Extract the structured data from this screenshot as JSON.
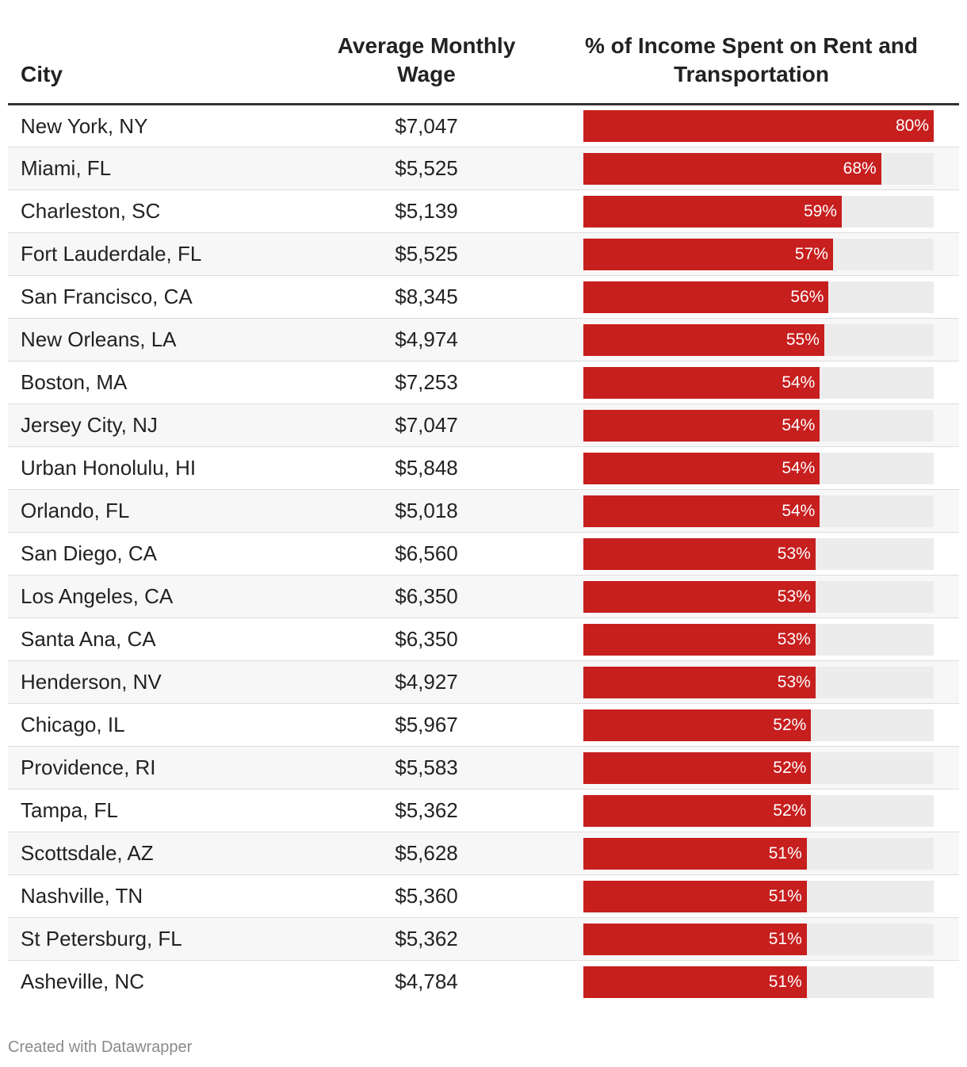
{
  "table": {
    "headers": {
      "city": "City",
      "wage": "Average Monthly Wage",
      "pct": "% of Income Spent on Rent and Transportation"
    }
  },
  "chart_data": {
    "type": "table",
    "columns": [
      "City",
      "Average Monthly Wage",
      "% of Income Spent on Rent and Transportation"
    ],
    "bar_max": 80,
    "colors": {
      "bar": "#c71e1e",
      "track": "#ececec"
    },
    "rows": [
      {
        "city": "New York, NY",
        "wage": "$7,047",
        "pct": 80,
        "pct_label": "80%"
      },
      {
        "city": "Miami, FL",
        "wage": "$5,525",
        "pct": 68,
        "pct_label": "68%"
      },
      {
        "city": "Charleston, SC",
        "wage": "$5,139",
        "pct": 59,
        "pct_label": "59%"
      },
      {
        "city": "Fort Lauderdale, FL",
        "wage": "$5,525",
        "pct": 57,
        "pct_label": "57%"
      },
      {
        "city": "San Francisco, CA",
        "wage": "$8,345",
        "pct": 56,
        "pct_label": "56%"
      },
      {
        "city": "New Orleans, LA",
        "wage": "$4,974",
        "pct": 55,
        "pct_label": "55%"
      },
      {
        "city": "Boston, MA",
        "wage": "$7,253",
        "pct": 54,
        "pct_label": "54%"
      },
      {
        "city": "Jersey City, NJ",
        "wage": "$7,047",
        "pct": 54,
        "pct_label": "54%"
      },
      {
        "city": "Urban Honolulu, HI",
        "wage": "$5,848",
        "pct": 54,
        "pct_label": "54%"
      },
      {
        "city": "Orlando, FL",
        "wage": "$5,018",
        "pct": 54,
        "pct_label": "54%"
      },
      {
        "city": "San Diego, CA",
        "wage": "$6,560",
        "pct": 53,
        "pct_label": "53%"
      },
      {
        "city": "Los Angeles, CA",
        "wage": "$6,350",
        "pct": 53,
        "pct_label": "53%"
      },
      {
        "city": "Santa Ana, CA",
        "wage": "$6,350",
        "pct": 53,
        "pct_label": "53%"
      },
      {
        "city": "Henderson, NV",
        "wage": "$4,927",
        "pct": 53,
        "pct_label": "53%"
      },
      {
        "city": "Chicago, IL",
        "wage": "$5,967",
        "pct": 52,
        "pct_label": "52%"
      },
      {
        "city": "Providence, RI",
        "wage": "$5,583",
        "pct": 52,
        "pct_label": "52%"
      },
      {
        "city": "Tampa, FL",
        "wage": "$5,362",
        "pct": 52,
        "pct_label": "52%"
      },
      {
        "city": "Scottsdale, AZ",
        "wage": "$5,628",
        "pct": 51,
        "pct_label": "51%"
      },
      {
        "city": "Nashville, TN",
        "wage": "$5,360",
        "pct": 51,
        "pct_label": "51%"
      },
      {
        "city": "St Petersburg, FL",
        "wage": "$5,362",
        "pct": 51,
        "pct_label": "51%"
      },
      {
        "city": "Asheville, NC",
        "wage": "$4,784",
        "pct": 51,
        "pct_label": "51%"
      }
    ]
  },
  "footer": {
    "credit": "Created with Datawrapper"
  }
}
